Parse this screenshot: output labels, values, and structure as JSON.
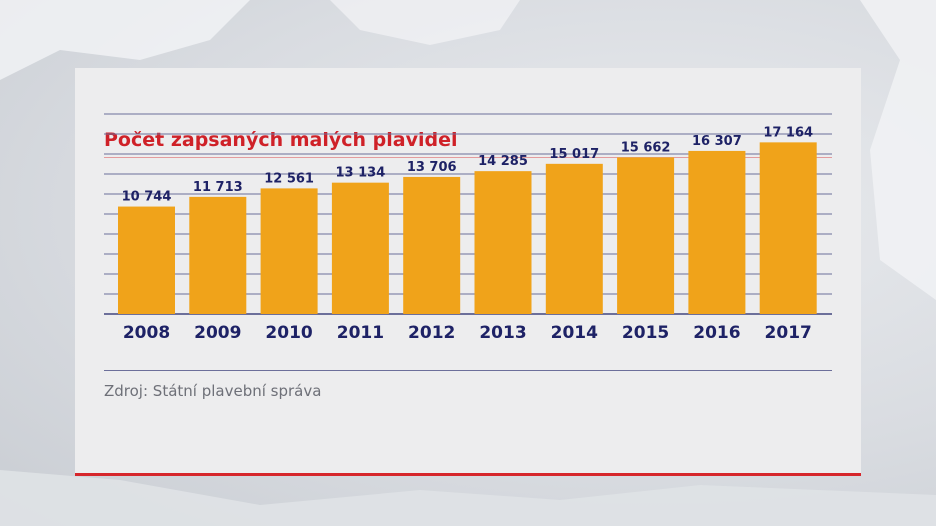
{
  "title": "Počet zapsaných malých plavidel",
  "source": "Zdroj: Státní plavební správa",
  "colors": {
    "bar": "#f0a31a",
    "title": "#cf2128",
    "label": "#1e2266",
    "grid": "#6c6f9a",
    "card_bottom_rule": "#d6262b"
  },
  "chart_data": {
    "type": "bar",
    "title": "Počet zapsaných malých plavidel",
    "xlabel": "",
    "ylabel": "",
    "grid": true,
    "legend": "none",
    "ylim": [
      0,
      20000
    ],
    "categories": [
      "2008",
      "2009",
      "2010",
      "2011",
      "2012",
      "2013",
      "2014",
      "2015",
      "2016",
      "2017"
    ],
    "values": [
      10744,
      11713,
      12561,
      13134,
      13706,
      14285,
      15017,
      15662,
      16307,
      17164
    ],
    "value_labels": [
      "10 744",
      "11 713",
      "12 561",
      "13 134",
      "13 706",
      "14 285",
      "15 017",
      "15 662",
      "16 307",
      "17 164"
    ]
  }
}
